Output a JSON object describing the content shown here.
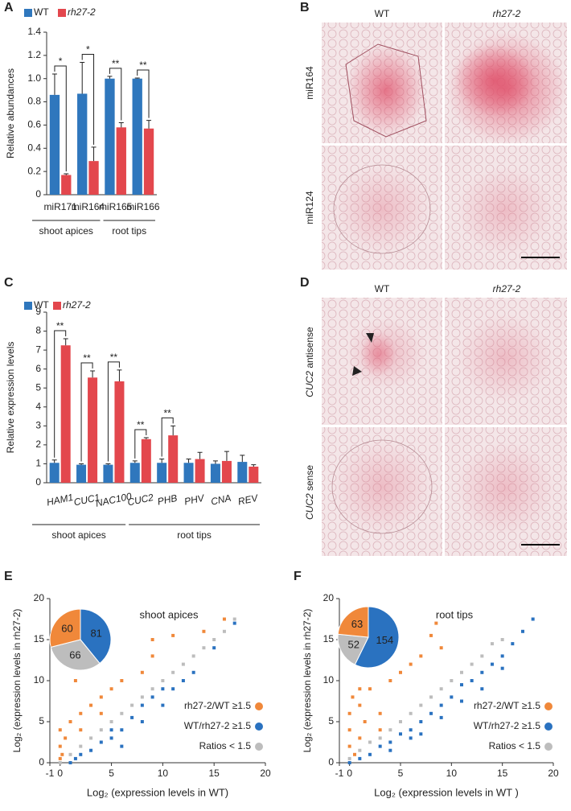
{
  "chart_data": [
    {
      "type": "bar",
      "panel": "A",
      "ylabel": "Relative abundances",
      "groups": [
        {
          "label": "shoot apices",
          "categories": [
            "miR171",
            "miR164"
          ]
        },
        {
          "label": "root tips",
          "categories": [
            "miR165",
            "miR166"
          ]
        }
      ],
      "series": [
        {
          "name": "WT",
          "color": "#2f77bd",
          "values": [
            0.86,
            0.87,
            1.0,
            1.0
          ],
          "errors": [
            0.18,
            0.27,
            0.02,
            0.005
          ]
        },
        {
          "name": "rh27-2",
          "color": "#e3474d",
          "values": [
            0.17,
            0.29,
            0.58,
            0.57
          ],
          "errors": [
            0.01,
            0.12,
            0.04,
            0.07
          ]
        }
      ],
      "annotations": [
        "*",
        "*",
        "**",
        "**"
      ],
      "ylim": [
        0,
        1.4
      ],
      "yticks": [
        0,
        0.2,
        0.4,
        0.6,
        0.8,
        {
          "value": 1,
          "label": "1.0"
        },
        1.2,
        1.4
      ]
    },
    {
      "type": "bar",
      "panel": "C",
      "ylabel": "Relative expression levels",
      "groups": [
        {
          "label": "shoot apices",
          "categories": [
            "HAM1",
            "CUC1",
            "NAC100"
          ]
        },
        {
          "label": "root tips",
          "categories": [
            "CUC2",
            "PHB",
            "PHV",
            "CNA",
            "REV"
          ]
        }
      ],
      "series": [
        {
          "name": "WT",
          "color": "#2f77bd",
          "values": [
            1.05,
            0.95,
            0.95,
            1.05,
            1.05,
            1.05,
            1.0,
            1.1
          ],
          "errors": [
            0.15,
            0.05,
            0.05,
            0.1,
            0.2,
            0.2,
            0.15,
            0.35
          ]
        },
        {
          "name": "rh27-2",
          "color": "#e3474d",
          "values": [
            7.25,
            5.55,
            5.35,
            2.3,
            2.5,
            1.25,
            1.15,
            0.85
          ],
          "errors": [
            0.35,
            0.35,
            0.6,
            0.08,
            0.5,
            0.35,
            0.5,
            0.1
          ]
        }
      ],
      "annotations": [
        "**",
        "**",
        "**",
        "**",
        "**",
        null,
        null,
        null
      ],
      "ylim": [
        0,
        9
      ],
      "yticks": [
        0,
        1,
        2,
        3,
        4,
        5,
        6,
        7,
        8,
        9
      ]
    },
    {
      "type": "scatter",
      "panel": "E",
      "title": "shoot apices",
      "xlabel": "Log₂ (expression levels in WT)",
      "ylabel": "Log₂ (expression levels in rh27-2)",
      "xlim": [
        -1,
        20
      ],
      "xticks": [
        -1,
        0,
        5,
        10,
        15,
        20
      ],
      "ylim": [
        0,
        20
      ],
      "yticks": [
        0,
        5,
        10,
        15,
        20
      ],
      "series": [
        {
          "name": "rh27-2/WT ≥1.5",
          "color": "#f0883a",
          "x": [
            0,
            0,
            0.2,
            0.5,
            1,
            1.5,
            2,
            3,
            4,
            5,
            6,
            8,
            9,
            11,
            9,
            14,
            16,
            2,
            0,
            4
          ],
          "values": [
            2,
            4,
            1,
            3,
            5,
            10,
            6,
            7,
            8,
            9,
            10,
            11,
            13,
            15.5,
            15,
            16,
            17.5,
            4,
            0.5,
            6
          ]
        },
        {
          "name": "WT/rh27-2 ≥1.5",
          "color": "#2a72c0",
          "x": [
            1,
            2,
            3,
            4,
            5,
            6,
            7,
            8,
            9,
            10,
            11,
            12,
            13,
            15,
            17,
            5,
            8,
            10,
            1.5,
            6
          ],
          "values": [
            0,
            1,
            1.5,
            2.5,
            3,
            4,
            5.5,
            7,
            8,
            9,
            9,
            10,
            11,
            14,
            17,
            4,
            5,
            7,
            0.5,
            2
          ]
        },
        {
          "name": "Ratios < 1.5",
          "color": "#bdbdbd",
          "x": [
            0,
            1,
            2,
            3,
            4,
            5,
            6,
            7,
            8,
            9,
            10,
            11,
            12,
            13,
            14,
            15,
            16,
            17
          ],
          "values": [
            0,
            1,
            2,
            3,
            4,
            5,
            6,
            7,
            8,
            9,
            10,
            11,
            12,
            13,
            14,
            15,
            16,
            17.5
          ]
        }
      ],
      "pie": {
        "values": [
          60,
          81,
          66
        ]
      }
    },
    {
      "type": "scatter",
      "panel": "F",
      "title": "root tips",
      "xlabel": "Log₂ (expression levels in WT )",
      "ylabel": "Log₂ (expression levels in rh27-2)",
      "xlim": [
        -1,
        20
      ],
      "xticks": [
        -1,
        0,
        5,
        10,
        15,
        20
      ],
      "ylim": [
        0,
        20
      ],
      "yticks": [
        0,
        5,
        10,
        15,
        20
      ],
      "series": [
        {
          "name": "rh27-2/WT ≥1.5",
          "color": "#f0883a",
          "x": [
            0,
            0,
            0,
            0.3,
            0.5,
            1,
            1,
            1.5,
            2,
            2,
            3,
            4,
            5,
            6,
            7,
            8,
            8.5,
            9,
            3,
            1
          ],
          "values": [
            2,
            4,
            6,
            8,
            1,
            3,
            7,
            5,
            9,
            12,
            6,
            10,
            11,
            12,
            13,
            15.5,
            17,
            14,
            4,
            9
          ]
        },
        {
          "name": "WT/rh27-2 ≥1.5",
          "color": "#2a72c0",
          "x": [
            0,
            1,
            2,
            3,
            4,
            5,
            6,
            7,
            8,
            9,
            10,
            11,
            12,
            13,
            14,
            15,
            16,
            17,
            18,
            7,
            9,
            11,
            13,
            15,
            4,
            6
          ],
          "values": [
            0,
            0.5,
            1,
            2,
            2.5,
            3.5,
            4,
            5,
            6,
            7,
            8,
            9.5,
            10,
            11,
            12,
            13,
            14.5,
            16,
            17.5,
            3.5,
            5.5,
            7.5,
            9,
            11.5,
            1.5,
            3
          ]
        },
        {
          "name": "Ratios < 1.5",
          "color": "#bdbdbd",
          "x": [
            0,
            1,
            2,
            3,
            4,
            5,
            6,
            7,
            8,
            9,
            10,
            11,
            12,
            13,
            14,
            15
          ],
          "values": [
            0.5,
            1.5,
            2.5,
            3,
            4,
            5,
            6,
            7,
            8,
            9,
            10,
            11,
            12,
            13,
            14.5,
            15
          ]
        }
      ],
      "pie": {
        "values": [
          63,
          154,
          52
        ]
      }
    }
  ],
  "micrographs": [
    {
      "panel": "B",
      "columns": [
        "WT",
        "rh27-2"
      ],
      "rows": [
        {
          "probe": "miR164"
        },
        {
          "probe": "miR124"
        }
      ]
    },
    {
      "panel": "D",
      "columns": [
        "WT",
        "rh27-2"
      ],
      "rows": [
        {
          "gene": "CUC2",
          "probe": " antisense"
        },
        {
          "gene": "CUC2",
          "probe": " sense"
        }
      ]
    }
  ]
}
